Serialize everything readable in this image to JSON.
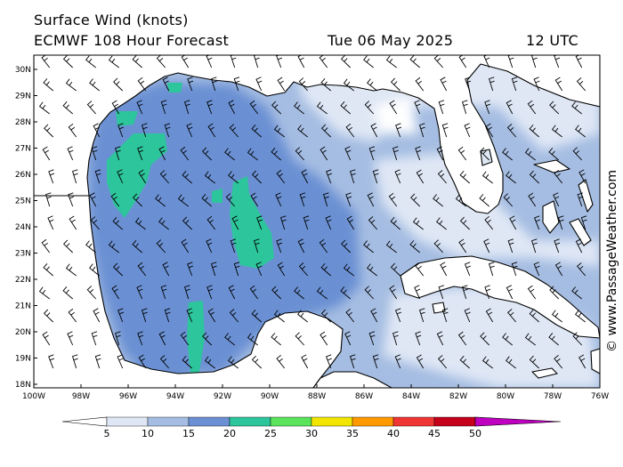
{
  "header": {
    "title": "Surface Wind (knots)",
    "model": "ECMWF 108 Hour Forecast",
    "date": "Tue 06 May 2025",
    "time": "12 UTC"
  },
  "copyright": "© www.PassageWeather.com",
  "axes": {
    "lat_labels": [
      "30N",
      "29N",
      "28N",
      "27N",
      "26N",
      "25N",
      "24N",
      "23N",
      "22N",
      "21N",
      "20N",
      "19N",
      "18N"
    ],
    "lon_labels": [
      "100W",
      "98W",
      "96W",
      "94W",
      "92W",
      "90W",
      "88W",
      "86W",
      "84W",
      "82W",
      "80W",
      "78W",
      "76W"
    ],
    "lat_range": [
      18,
      30.5
    ],
    "lon_range": [
      -100,
      -76
    ]
  },
  "legend": {
    "labels": [
      "5",
      "10",
      "15",
      "20",
      "25",
      "30",
      "35",
      "40",
      "45",
      "50"
    ],
    "colors": [
      "#ffffff",
      "#dfe7f5",
      "#a5bde2",
      "#6b90d3",
      "#2dc59b",
      "#5be35b",
      "#f2e600",
      "#ff9900",
      "#f03535",
      "#c4001a",
      "#c000c0"
    ]
  },
  "palette": {
    "ocean_light": "#dfe7f5",
    "ocean_mid": "#a5bde2",
    "ocean_strong": "#6b90d3",
    "ocean_peak": "#2dc59b",
    "land": "#ffffff",
    "coast": "#000000"
  }
}
